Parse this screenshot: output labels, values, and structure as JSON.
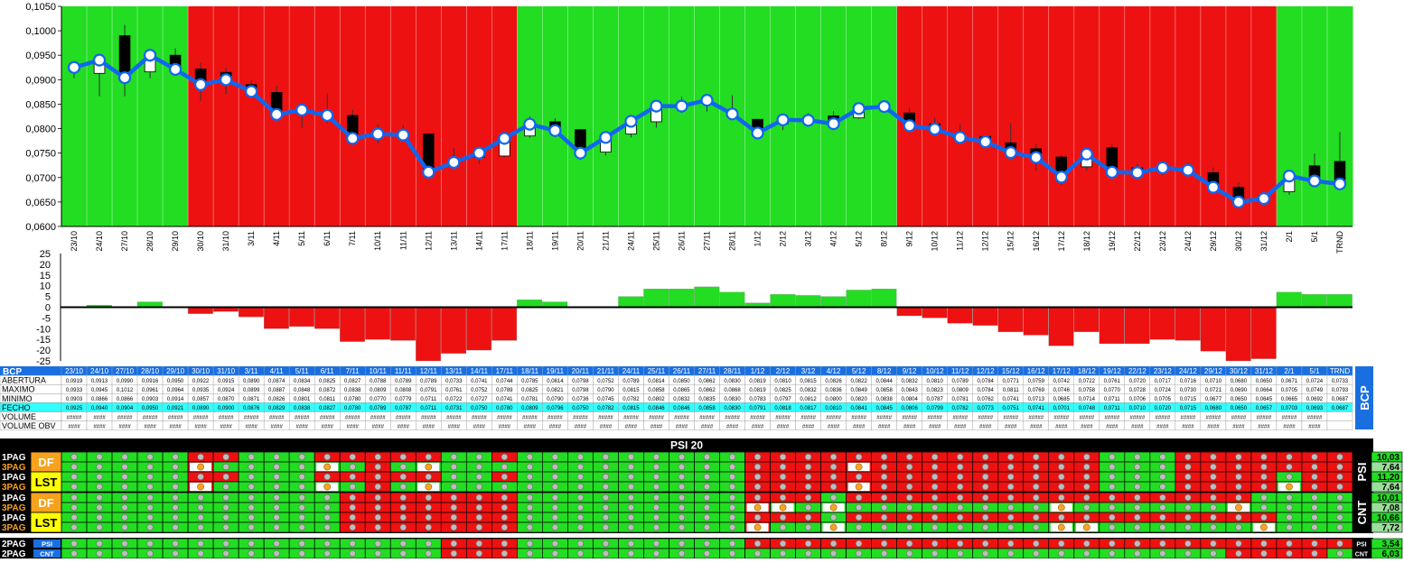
{
  "colors": {
    "bull_band": "#22dd22",
    "bear_band": "#ee1111",
    "line": "#1166ee",
    "candle_up": "#ffffff",
    "candle_down": "#000000",
    "cyan": "#33ffff",
    "bcp_blue": "#1a6fe0",
    "orange": "#f7a21c",
    "yellow": "#ffff00",
    "cell_green": "#22dd22",
    "cell_red": "#ee1111"
  },
  "chart_data": [
    {
      "type": "candlestick",
      "categories": [
        "23/10",
        "24/10",
        "27/10",
        "28/10",
        "29/10",
        "30/10",
        "31/10",
        "3/11",
        "4/11",
        "5/11",
        "6/11",
        "7/11",
        "10/11",
        "11/11",
        "12/11",
        "13/11",
        "14/11",
        "17/11",
        "18/11",
        "19/11",
        "20/11",
        "21/11",
        "24/11",
        "25/11",
        "26/11",
        "27/11",
        "28/11",
        "1/12",
        "2/12",
        "3/12",
        "4/12",
        "5/12",
        "8/12",
        "9/12",
        "10/12",
        "11/12",
        "12/12",
        "15/12",
        "16/12",
        "17/12",
        "18/12",
        "19/12",
        "22/12",
        "23/12",
        "24/12",
        "29/12",
        "30/12",
        "31/12",
        "2/1",
        "5/1",
        "TRND"
      ],
      "band": [
        "G",
        "G",
        "G",
        "G",
        "G",
        "R",
        "R",
        "R",
        "R",
        "R",
        "R",
        "R",
        "R",
        "R",
        "R",
        "R",
        "R",
        "R",
        "G",
        "G",
        "G",
        "G",
        "G",
        "G",
        "G",
        "G",
        "G",
        "G",
        "G",
        "G",
        "G",
        "G",
        "G",
        "R",
        "R",
        "R",
        "R",
        "R",
        "R",
        "R",
        "R",
        "R",
        "R",
        "R",
        "R",
        "R",
        "R",
        "R",
        "G",
        "G",
        "G"
      ],
      "open": [
        0.0919,
        0.0913,
        0.099,
        0.0916,
        0.095,
        0.0922,
        0.0915,
        0.089,
        0.0874,
        0.0834,
        0.0825,
        0.0827,
        0.0788,
        0.0789,
        0.0789,
        0.0733,
        0.0741,
        0.0744,
        0.0785,
        0.0814,
        0.0798,
        0.0752,
        0.0789,
        0.0814,
        0.085,
        0.0862,
        0.083,
        0.0819,
        0.081,
        0.0815,
        0.0826,
        0.0822,
        0.0844,
        0.0832,
        0.081,
        0.0789,
        0.0784,
        0.0771,
        0.0759,
        0.0742,
        0.0722,
        0.0761,
        0.072,
        0.0717,
        0.0716,
        0.071,
        0.068,
        0.065,
        0.0671,
        0.0724,
        0.0733
      ],
      "high": [
        0.0933,
        0.0945,
        0.1012,
        0.0961,
        0.0964,
        0.0935,
        0.0924,
        0.0899,
        0.0887,
        0.0848,
        0.0872,
        0.0838,
        0.0809,
        0.0808,
        0.0791,
        0.0761,
        0.0752,
        0.0789,
        0.0825,
        0.0821,
        0.0798,
        0.079,
        0.0815,
        0.0858,
        0.0865,
        0.0862,
        0.0868,
        0.0819,
        0.0825,
        0.0832,
        0.0836,
        0.0849,
        0.0858,
        0.0843,
        0.0823,
        0.0809,
        0.0784,
        0.0811,
        0.0769,
        0.0746,
        0.0758,
        0.077,
        0.0728,
        0.0724,
        0.073,
        0.0721,
        0.069,
        0.0664,
        0.0705,
        0.0749,
        0.0793
      ],
      "low": [
        0.0903,
        0.0866,
        0.0866,
        0.0903,
        0.0914,
        0.0857,
        0.087,
        0.0871,
        0.0826,
        0.0801,
        0.0811,
        0.078,
        0.077,
        0.0779,
        0.0711,
        0.0722,
        0.0727,
        0.0741,
        0.0781,
        0.079,
        0.0736,
        0.0745,
        0.0782,
        0.0802,
        0.0832,
        0.0835,
        0.083,
        0.0783,
        0.0797,
        0.0812,
        0.08,
        0.082,
        0.0838,
        0.0804,
        0.0787,
        0.0781,
        0.0762,
        0.0741,
        0.0713,
        0.0685,
        0.0714,
        0.0711,
        0.0706,
        0.0705,
        0.0715,
        0.0677,
        0.065,
        0.0645,
        0.0665,
        0.0692,
        0.0687
      ],
      "close": [
        0.0925,
        0.094,
        0.0904,
        0.095,
        0.0921,
        0.089,
        0.09,
        0.0876,
        0.0829,
        0.0838,
        0.0827,
        0.078,
        0.0789,
        0.0787,
        0.0711,
        0.0731,
        0.075,
        0.078,
        0.0809,
        0.0796,
        0.075,
        0.0782,
        0.0815,
        0.0846,
        0.0846,
        0.0858,
        0.083,
        0.0791,
        0.0818,
        0.0817,
        0.081,
        0.0841,
        0.0845,
        0.0806,
        0.0799,
        0.0782,
        0.0773,
        0.0751,
        0.0741,
        0.0701,
        0.0748,
        0.0711,
        0.071,
        0.072,
        0.0715,
        0.068,
        0.065,
        0.0657,
        0.0703,
        0.0693,
        0.0687
      ],
      "ylim": [
        0.06,
        0.105
      ],
      "yticks": [
        "0,0600",
        "0,0650",
        "0,0700",
        "0,0750",
        "0,0800",
        "0,0850",
        "0,0900",
        "0,0950",
        "0,1000",
        "0,1050"
      ]
    },
    {
      "type": "bar",
      "values": [
        0,
        1,
        0,
        2.5,
        0,
        -3,
        -2,
        -4.5,
        -10,
        -9,
        -10,
        -16,
        -15,
        -15.5,
        -25,
        -21.5,
        -20,
        -15.5,
        3.5,
        2.5,
        0,
        0,
        5,
        8.5,
        8.5,
        9.5,
        7,
        2,
        6,
        5.5,
        5,
        8,
        8.5,
        -4,
        -5,
        -7.5,
        -8.5,
        -11.5,
        -13,
        -18,
        -11.5,
        -17,
        -17,
        -15,
        -15.5,
        -20.5,
        -25,
        -24,
        7,
        6,
        6
      ],
      "ylim": [
        -25,
        25
      ],
      "yticks": [
        "-25",
        "-20",
        "-15",
        "-10",
        "-5",
        "0",
        "5",
        "10",
        "15",
        "20",
        "25"
      ]
    }
  ],
  "table": {
    "title": "BCP",
    "side_label": "BCP",
    "rows": [
      {
        "label": "ABERTURA",
        "values": [
          "0,0919",
          "0,0913",
          "0,0990",
          "0,0916",
          "0,0950",
          "0,0922",
          "0,0915",
          "0,0890",
          "0,0874",
          "0,0834",
          "0,0825",
          "0,0827",
          "0,0788",
          "0,0789",
          "0,0789",
          "0,0733",
          "0,0741",
          "0,0744",
          "0,0785",
          "0,0814",
          "0,0798",
          "0,0752",
          "0,0789",
          "0,0814",
          "0,0850",
          "0,0862",
          "0,0830",
          "0,0819",
          "0,0810",
          "0,0815",
          "0,0826",
          "0,0822",
          "0,0844",
          "0,0832",
          "0,0810",
          "0,0789",
          "0,0784",
          "0,0771",
          "0,0759",
          "0,0742",
          "0,0722",
          "0,0761",
          "0,0720",
          "0,0717",
          "0,0716",
          "0,0710",
          "0,0680",
          "0,0650",
          "0,0671",
          "0,0724",
          "0,0733"
        ]
      },
      {
        "label": "MAXIMO",
        "values": [
          "0,0933",
          "0,0945",
          "0,1012",
          "0,0961",
          "0,0964",
          "0,0935",
          "0,0924",
          "0,0899",
          "0,0887",
          "0,0848",
          "0,0872",
          "0,0838",
          "0,0809",
          "0,0808",
          "0,0791",
          "0,0761",
          "0,0752",
          "0,0789",
          "0,0825",
          "0,0821",
          "0,0798",
          "0,0790",
          "0,0815",
          "0,0858",
          "0,0865",
          "0,0862",
          "0,0868",
          "0,0819",
          "0,0825",
          "0,0832",
          "0,0836",
          "0,0849",
          "0,0858",
          "0,0843",
          "0,0823",
          "0,0809",
          "0,0784",
          "0,0811",
          "0,0769",
          "0,0746",
          "0,0758",
          "0,0770",
          "0,0728",
          "0,0724",
          "0,0730",
          "0,0721",
          "0,0690",
          "0,0664",
          "0,0705",
          "0,0749",
          "0,0793"
        ]
      },
      {
        "label": "MINIMO",
        "values": [
          "0,0903",
          "0,0866",
          "0,0866",
          "0,0903",
          "0,0914",
          "0,0857",
          "0,0870",
          "0,0871",
          "0,0826",
          "0,0801",
          "0,0811",
          "0,0780",
          "0,0770",
          "0,0779",
          "0,0711",
          "0,0722",
          "0,0727",
          "0,0741",
          "0,0781",
          "0,0790",
          "0,0736",
          "0,0745",
          "0,0782",
          "0,0802",
          "0,0832",
          "0,0835",
          "0,0830",
          "0,0783",
          "0,0797",
          "0,0812",
          "0,0800",
          "0,0820",
          "0,0838",
          "0,0804",
          "0,0787",
          "0,0781",
          "0,0762",
          "0,0741",
          "0,0713",
          "0,0685",
          "0,0714",
          "0,0711",
          "0,0706",
          "0,0705",
          "0,0715",
          "0,0677",
          "0,0650",
          "0,0645",
          "0,0665",
          "0,0692",
          "0,0687"
        ]
      },
      {
        "label": "FECHO",
        "values": [
          "0,0925",
          "0,0940",
          "0,0904",
          "0,0950",
          "0,0921",
          "0,0890",
          "0,0900",
          "0,0876",
          "0,0829",
          "0,0838",
          "0,0827",
          "0,0780",
          "0,0789",
          "0,0787",
          "0,0711",
          "0,0731",
          "0,0750",
          "0,0780",
          "0,0809",
          "0,0796",
          "0,0750",
          "0,0782",
          "0,0815",
          "0,0846",
          "0,0846",
          "0,0858",
          "0,0830",
          "0,0791",
          "0,0818",
          "0,0817",
          "0,0810",
          "0,0841",
          "0,0845",
          "0,0806",
          "0,0799",
          "0,0782",
          "0,0773",
          "0,0751",
          "0,0741",
          "0,0701",
          "0,0748",
          "0,0711",
          "0,0710",
          "0,0720",
          "0,0715",
          "0,0680",
          "0,0650",
          "0,0657",
          "0,0703",
          "0,0693",
          "0,0687"
        ]
      },
      {
        "label": "VOLUME",
        "values": [
          "#####",
          "####",
          "#####",
          "#####",
          "#####",
          "#####",
          "#####",
          "#####",
          "#####",
          "#####",
          "#####",
          "#####",
          "#####",
          "#####",
          "#####",
          "#####",
          "#####",
          "#####",
          "#####",
          "#####",
          "#####",
          "#####",
          "#####",
          "#####",
          "#####",
          "#####",
          "#####",
          "#####",
          "#####",
          "#####",
          "#####",
          "#####",
          "#####",
          "#####",
          "#####",
          "#####",
          "#####",
          "#####",
          "#####",
          "#####",
          "#####",
          "#####",
          "#####",
          "#####",
          "#####",
          "#####",
          "#####",
          "#####",
          "#####",
          "#####",
          ""
        ]
      },
      {
        "label": "VOLUME OBV",
        "values": [
          "####",
          "####",
          "####",
          "####",
          "####",
          "####",
          "####",
          "####",
          "####",
          "####",
          "####",
          "####",
          "####",
          "####",
          "####",
          "####",
          "####",
          "####",
          "####",
          "####",
          "####",
          "####",
          "####",
          "####",
          "####",
          "####",
          "####",
          "####",
          "####",
          "####",
          "####",
          "####",
          "####",
          "####",
          "####",
          "####",
          "####",
          "####",
          "####",
          "####",
          "####",
          "####",
          "####",
          "####",
          "####",
          "####",
          "####",
          "####",
          "####",
          "####",
          ""
        ]
      }
    ]
  },
  "signals": {
    "title": "PSI 20",
    "groups": [
      {
        "side_label": "PSI",
        "tags": [
          {
            "text": "DF",
            "rows": [
              0,
              1
            ]
          },
          {
            "text": "LST",
            "rows": [
              2,
              3
            ]
          }
        ],
        "rows": [
          {
            "label": "1PAG",
            "value": "10,03",
            "cells": "GGGGGRRGGGRRRRRGGRGGGGGGGGGRRRRRRRRRRRRRRGGGRRRRRRR",
            "marks": ""
          },
          {
            "label": "3PAG",
            "value": "7,64",
            "cells": "GGGGGRGGGGGGRGGGGGGGGGGGGGGRRRRRRRRRRRRRRGGGRRRRRRR",
            "marks": "5,10,14,31"
          },
          {
            "label": "1PAG",
            "value": "11,20",
            "cells": "GGGGGRRGGGRRRRRGGRGGGGGGGGGRRRRRRRRRRRRRRGGGRRRRGRR",
            "marks": ""
          },
          {
            "label": "3PAG",
            "value": "7,64",
            "cells": "GGGGGRGGGGGGRGGGGGGGGGGGGGGRRRRRRRRRRRRRRGGGRRRRGRR",
            "marks": "5,10,14,31,48"
          }
        ]
      },
      {
        "side_label": "CNT",
        "tags": [
          {
            "text": "DF",
            "rows": [
              0,
              1
            ]
          },
          {
            "text": "LST",
            "rows": [
              2,
              3
            ]
          }
        ],
        "rows": [
          {
            "label": "1PAG",
            "value": "10,01",
            "cells": "GGGGGGGGGGGRRRRRRRGGGGGGGGGRRRGRRRRRRRRRRRRRRRRGGGG",
            "marks": ""
          },
          {
            "label": "3PAG",
            "value": "7,08",
            "cells": "GGGGGGGGGGGRRRRRRRGGGGGGGGGRGGGGGGGGGGGGGGGGGGGGGGG",
            "marks": "27,28,30,39,46"
          },
          {
            "label": "1PAG",
            "value": "10,66",
            "cells": "GGGGGGGGGGGRRRRRRRGGGGGGGGGRRRGRRRRRRRRRRRRRRRRRGGG",
            "marks": ""
          },
          {
            "label": "3PAG",
            "value": "7,72",
            "cells": "GGGGGGGGGGGRRRRRRRGGGGGGGGGRGGGGGGGGGGGGGGGGGGGGGGG",
            "marks": "27,30,39,40,47"
          }
        ]
      },
      {
        "side_label": "",
        "tags": [],
        "rows": [
          {
            "label": "2PAG",
            "tag": "PSI",
            "value": "3,54",
            "value_tag": "PSI",
            "cells": "GGGGGGGGGGGGGGGRRRGGGGGGGGGRRRRRRRRRRRRRRRRRRRRRRRR",
            "marks": ""
          },
          {
            "label": "2PAG",
            "tag": "CNT",
            "value": "6,03",
            "value_tag": "CNT",
            "cells": "GGGGGGGGGGGGGGGRRRGGGGGGGGGGGGGGGGGGGGGGGGGGGGRRRRG",
            "marks": ""
          }
        ]
      }
    ]
  }
}
